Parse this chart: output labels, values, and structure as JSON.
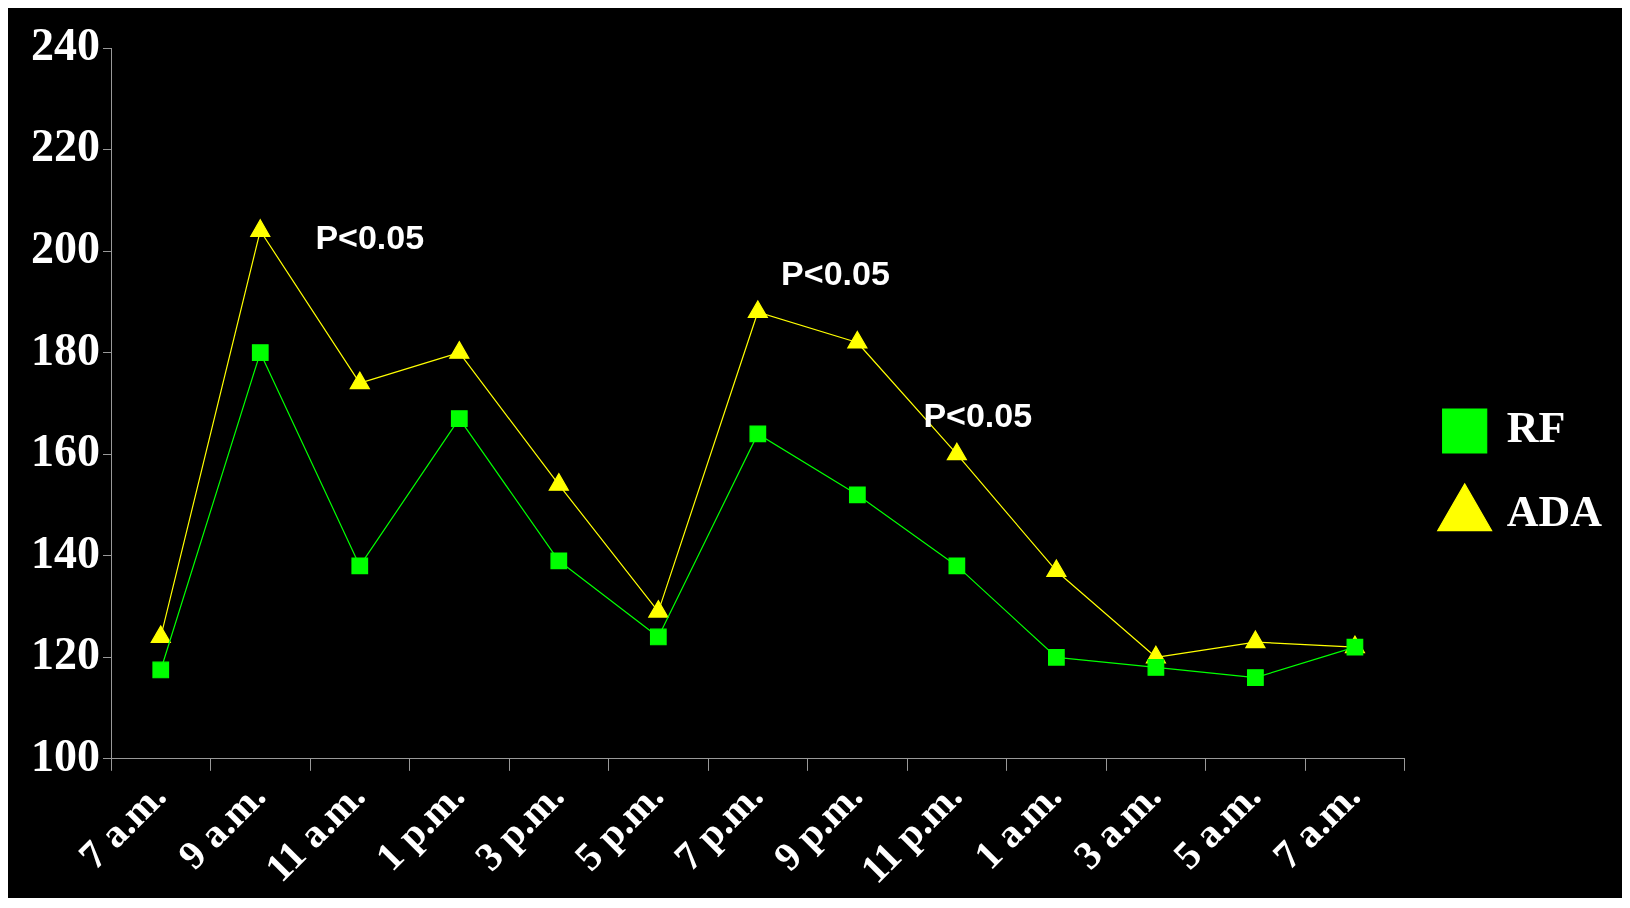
{
  "chart_data": {
    "type": "line",
    "categories": [
      "7 a.m.",
      "9 a.m.",
      "11 a.m.",
      "1 p.m.",
      "3 p.m.",
      "5 p.m.",
      "7 p.m.",
      "9 p.m.",
      "11 p.m.",
      "1 a.m.",
      "3 a.m.",
      "5 a.m.",
      "7 a.m."
    ],
    "series": [
      {
        "name": "RF",
        "color": "#00ff00",
        "marker": "square",
        "values": [
          117.5,
          180,
          138,
          167,
          139,
          124,
          164,
          152,
          138,
          120,
          118,
          116,
          122
        ]
      },
      {
        "name": "ADA",
        "color": "#ffff00",
        "marker": "triangle",
        "values": [
          124,
          204,
          174,
          180,
          154,
          129,
          188,
          182,
          160,
          137,
          120,
          123,
          122
        ]
      }
    ],
    "ylim": [
      100,
      240
    ],
    "yticks": [
      100,
      120,
      140,
      160,
      180,
      200,
      220,
      240
    ],
    "grid": false,
    "legend": "right",
    "annotations": [
      "P<0.05",
      "P<0.05",
      "P<0.05"
    ]
  }
}
